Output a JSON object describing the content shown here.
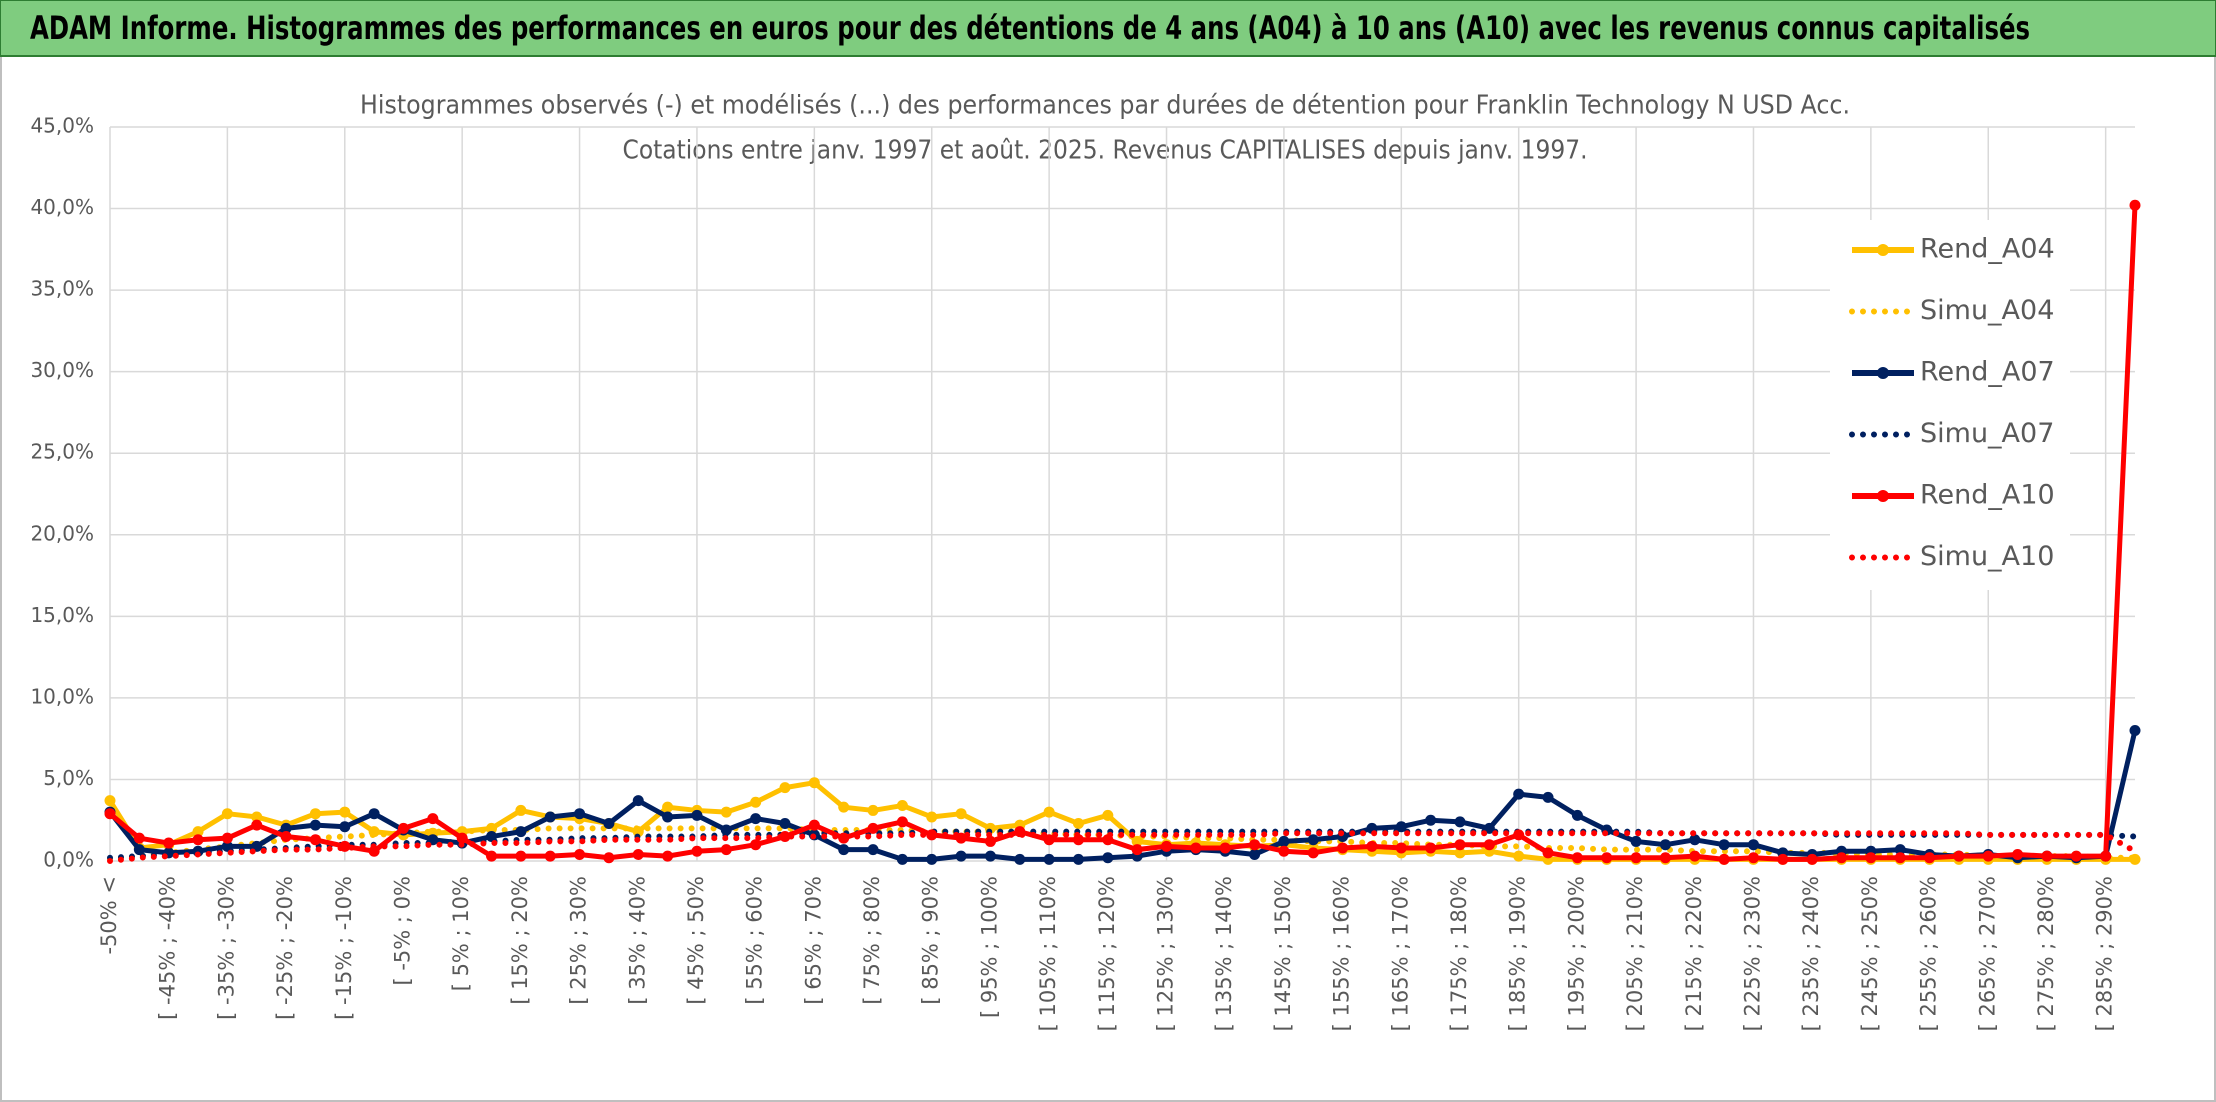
{
  "chart_data": {
    "type": "line",
    "title": "ADAM Informe. Histogrammes des performances en euros pour des détentions de 4 ans (A04) à 10 ans (A10) avec les revenus connus capitalisés",
    "subtitle": [
      "Histogrammes observés (-) et modélisés (...) des performances par durées de détention pour Franklin Technology N USD Acc.",
      "Cotations entre janv. 1997 et août. 2025. Revenus CAPITALISES depuis janv. 1997."
    ],
    "categories": [
      "-50% <",
      null,
      "[ -45% ; -40%",
      null,
      "[ -35% ; -30%",
      null,
      "[ -25% ; -20%",
      null,
      "[ -15% ; -10%",
      null,
      "[ -5% ; 0%",
      null,
      "[ 5% ; 10%",
      null,
      "[ 15% ; 20%",
      null,
      "[ 25% ; 30%",
      null,
      "[ 35% ; 40%",
      null,
      "[ 45% ; 50%",
      null,
      "[ 55% ; 60%",
      null,
      "[ 65% ; 70%",
      null,
      "[ 75% ; 80%",
      null,
      "[ 85% ; 90%",
      null,
      "[ 95% ; 100%",
      null,
      "[ 105% ; 110%",
      null,
      "[ 115% ; 120%",
      null,
      "[ 125% ; 130%",
      null,
      "[ 135% ; 140%",
      null,
      "[ 145% ; 150%",
      null,
      "[ 155% ; 160%",
      null,
      "[ 165% ; 170%",
      null,
      "[ 175% ; 180%",
      null,
      "[ 185% ; 190%",
      null,
      "[ 195% ; 200%",
      null,
      "[ 205% ; 210%",
      null,
      "[ 215% ; 220%",
      null,
      "[ 225% ; 230%",
      null,
      "[ 235% ; 240%",
      null,
      "[ 245% ; 250%",
      null,
      "[ 255% ; 260%",
      null,
      "[ 265% ; 270%",
      null,
      "[ 275% ; 280%",
      null,
      "[ 285% ; 290%",
      null
    ],
    "series": [
      {
        "name": "Rend_A04",
        "color": "#ffc000",
        "style": "solid",
        "values": [
          3.7,
          0.8,
          1.0,
          1.8,
          2.9,
          2.7,
          2.2,
          2.9,
          3.0,
          1.8,
          1.6,
          1.7,
          1.8,
          2.0,
          3.1,
          2.7,
          2.6,
          2.3,
          1.8,
          3.3,
          3.1,
          3.0,
          3.6,
          4.5,
          4.8,
          3.3,
          3.1,
          3.4,
          2.7,
          2.9,
          2.0,
          2.2,
          3.0,
          2.3,
          2.8,
          1.2,
          1.0,
          1.1,
          1.0,
          0.9,
          1.0,
          0.8,
          0.7,
          0.6,
          0.5,
          0.6,
          0.5,
          0.6,
          0.3,
          0.1,
          0.1,
          0.1,
          0.1,
          0.1,
          0.1,
          0.1,
          0.1,
          0.1,
          0.1,
          0.1,
          0.1,
          0.1,
          0.1,
          0.1,
          0.1,
          0.1,
          0.1,
          0.1,
          0.1,
          0.1
        ]
      },
      {
        "name": "Simu_A04",
        "color": "#ffc000",
        "style": "dotted",
        "values": [
          0.1,
          0.3,
          0.5,
          0.7,
          0.9,
          1.1,
          1.3,
          1.4,
          1.5,
          1.6,
          1.7,
          1.8,
          1.8,
          1.9,
          1.9,
          2.0,
          2.0,
          2.0,
          2.0,
          2.0,
          2.0,
          2.0,
          2.0,
          2.0,
          1.9,
          1.9,
          1.9,
          1.9,
          1.8,
          1.8,
          1.8,
          1.7,
          1.7,
          1.6,
          1.6,
          1.5,
          1.5,
          1.4,
          1.4,
          1.3,
          1.3,
          1.2,
          1.2,
          1.1,
          1.1,
          1.0,
          1.0,
          0.9,
          0.9,
          0.8,
          0.8,
          0.7,
          0.7,
          0.7,
          0.6,
          0.6,
          0.6,
          0.5,
          0.5,
          0.5,
          0.4,
          0.4,
          0.4,
          0.4,
          0.3,
          0.3,
          0.3,
          0.3,
          0.2,
          0.2
        ]
      },
      {
        "name": "Rend_A07",
        "color": "#002060",
        "style": "solid",
        "values": [
          3.0,
          0.7,
          0.5,
          0.6,
          0.9,
          0.9,
          2.0,
          2.2,
          2.1,
          2.9,
          1.9,
          1.3,
          1.1,
          1.5,
          1.8,
          2.7,
          2.9,
          2.3,
          3.7,
          2.7,
          2.8,
          1.9,
          2.6,
          2.3,
          1.6,
          0.7,
          0.7,
          0.1,
          0.1,
          0.3,
          0.3,
          0.1,
          0.1,
          0.1,
          0.2,
          0.3,
          0.6,
          0.7,
          0.6,
          0.4,
          1.2,
          1.3,
          1.5,
          2.0,
          2.1,
          2.5,
          2.4,
          2.0,
          4.1,
          3.9,
          2.8,
          1.9,
          1.2,
          1.0,
          1.3,
          1.0,
          1.0,
          0.5,
          0.4,
          0.6,
          0.6,
          0.7,
          0.4,
          0.3,
          0.4,
          0.2,
          0.3,
          0.2,
          0.3,
          8.0
        ]
      },
      {
        "name": "Simu_A07",
        "color": "#002060",
        "style": "dotted",
        "values": [
          0.2,
          0.3,
          0.4,
          0.5,
          0.6,
          0.7,
          0.8,
          0.9,
          1.0,
          1.0,
          1.1,
          1.1,
          1.2,
          1.2,
          1.3,
          1.3,
          1.4,
          1.4,
          1.5,
          1.5,
          1.5,
          1.6,
          1.6,
          1.6,
          1.7,
          1.7,
          1.7,
          1.7,
          1.8,
          1.8,
          1.8,
          1.8,
          1.8,
          1.8,
          1.8,
          1.8,
          1.8,
          1.8,
          1.8,
          1.8,
          1.8,
          1.8,
          1.8,
          1.8,
          1.8,
          1.8,
          1.8,
          1.8,
          1.8,
          1.8,
          1.8,
          1.8,
          1.8,
          1.7,
          1.7,
          1.7,
          1.7,
          1.7,
          1.7,
          1.6,
          1.6,
          1.6,
          1.6,
          1.6,
          1.6,
          1.6,
          1.6,
          1.6,
          1.6,
          1.5
        ]
      },
      {
        "name": "Rend_A10",
        "color": "#ff0000",
        "style": "solid",
        "values": [
          2.9,
          1.4,
          1.1,
          1.3,
          1.4,
          2.2,
          1.5,
          1.3,
          0.9,
          0.6,
          2.0,
          2.6,
          1.4,
          0.3,
          0.3,
          0.3,
          0.4,
          0.2,
          0.4,
          0.3,
          0.6,
          0.7,
          1.0,
          1.5,
          2.2,
          1.4,
          2.0,
          2.4,
          1.6,
          1.4,
          1.2,
          1.8,
          1.3,
          1.3,
          1.3,
          0.7,
          0.9,
          0.8,
          0.8,
          1.0,
          0.6,
          0.5,
          0.8,
          0.9,
          0.8,
          0.8,
          1.0,
          1.0,
          1.6,
          0.5,
          0.2,
          0.2,
          0.2,
          0.2,
          0.3,
          0.1,
          0.2,
          0.1,
          0.1,
          0.2,
          0.2,
          0.2,
          0.2,
          0.3,
          0.3,
          0.4,
          0.3,
          0.3,
          0.3,
          40.2
        ]
      },
      {
        "name": "Simu_A10",
        "color": "#ff0000",
        "style": "dotted",
        "values": [
          0.0,
          0.2,
          0.3,
          0.4,
          0.5,
          0.6,
          0.7,
          0.7,
          0.8,
          0.9,
          0.9,
          1.0,
          1.0,
          1.1,
          1.1,
          1.2,
          1.2,
          1.3,
          1.3,
          1.3,
          1.4,
          1.4,
          1.4,
          1.5,
          1.5,
          1.5,
          1.5,
          1.6,
          1.6,
          1.6,
          1.6,
          1.6,
          1.6,
          1.6,
          1.6,
          1.6,
          1.6,
          1.6,
          1.6,
          1.6,
          1.7,
          1.7,
          1.7,
          1.7,
          1.7,
          1.7,
          1.7,
          1.7,
          1.7,
          1.7,
          1.7,
          1.7,
          1.7,
          1.7,
          1.7,
          1.7,
          1.7,
          1.7,
          1.7,
          1.7,
          1.7,
          1.7,
          1.7,
          1.7,
          1.6,
          1.6,
          1.6,
          1.6,
          1.6,
          0.6
        ]
      }
    ],
    "ylim": [
      0,
      45
    ],
    "yticks": [
      {
        "value": 0,
        "label": "0,0%"
      },
      {
        "value": 5,
        "label": "5,0%"
      },
      {
        "value": 10,
        "label": "10,0%"
      },
      {
        "value": 15,
        "label": "15,0%"
      },
      {
        "value": 20,
        "label": "20,0%"
      },
      {
        "value": 25,
        "label": "25,0%"
      },
      {
        "value": 30,
        "label": "30,0%"
      },
      {
        "value": 35,
        "label": "35,0%"
      },
      {
        "value": 40,
        "label": "40,0%"
      },
      {
        "value": 45,
        "label": "45,0%"
      }
    ],
    "grid": true,
    "legend": "right"
  }
}
